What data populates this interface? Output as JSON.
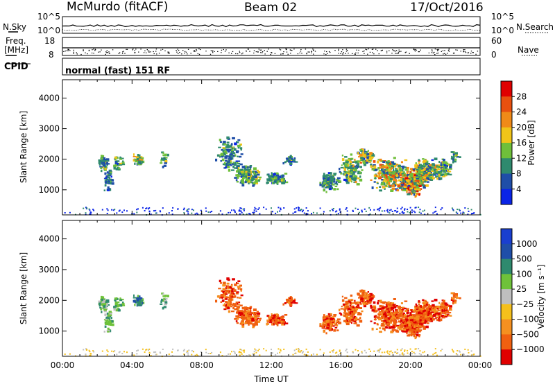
{
  "header": {
    "station": "McMurdo (fitACF)",
    "beam": "Beam 02",
    "date": "17/Oct/2016"
  },
  "status_panels": {
    "n_sky_label": "N.Sky",
    "n_search_label": "N.Search",
    "noise_axis_left": [
      "10^5",
      "10^0"
    ],
    "noise_axis_right": [
      "10^5",
      "10^0"
    ],
    "freq_label_line1": "Freq.",
    "freq_label_line2": "[MHz]",
    "freq_axis": [
      "18",
      "8"
    ],
    "nave_label": "Nave",
    "nave_axis": [
      "60",
      "0"
    ],
    "cpid_label": "CPID",
    "cpid_text": "normal (fast) 151 RF"
  },
  "colors": {
    "power_scale": [
      "#0a24e6",
      "#1f4ea8",
      "#2f8a6e",
      "#6fbf3a",
      "#f0c419",
      "#f08a18",
      "#e8500f",
      "#e00000"
    ],
    "velocity_scale": [
      "#e00000",
      "#f06010",
      "#f59020",
      "#f5c01c",
      "#bfbfbf",
      "#6fc23a",
      "#2f8a6e",
      "#1f4ea8",
      "#1a3fd0"
    ]
  },
  "chart_data": [
    {
      "type": "heatmap",
      "title": "",
      "ylabel": "Slant Range [km]",
      "xlabel": "",
      "x_ticks": [
        "00:00",
        "04:00",
        "08:00",
        "12:00",
        "16:00",
        "20:00",
        "00:00"
      ],
      "x_range_hours": [
        0,
        24
      ],
      "y_ticks": [
        "1000",
        "2000",
        "3000",
        "4000"
      ],
      "ylim": [
        180,
        4600
      ],
      "colorbar": {
        "label": "Power [dB]",
        "range": [
          0,
          32
        ],
        "tick_labels": [
          "4",
          "8",
          "12",
          "16",
          "20",
          "24",
          "28"
        ]
      }
    },
    {
      "type": "heatmap",
      "title": "",
      "ylabel": "Slant Range [km]",
      "xlabel": "Time UT",
      "x_ticks": [
        "00:00",
        "04:00",
        "08:00",
        "12:00",
        "16:00",
        "20:00",
        "00:00"
      ],
      "x_range_hours": [
        0,
        24
      ],
      "y_ticks": [
        "1000",
        "2000",
        "3000",
        "4000"
      ],
      "ylim": [
        180,
        4600
      ],
      "colorbar": {
        "label": "Velocity [m s⁻¹]",
        "tick_labels": [
          "1000",
          "500",
          "100",
          "25",
          "−25",
          "−100",
          "−500",
          "−1000"
        ]
      }
    }
  ]
}
